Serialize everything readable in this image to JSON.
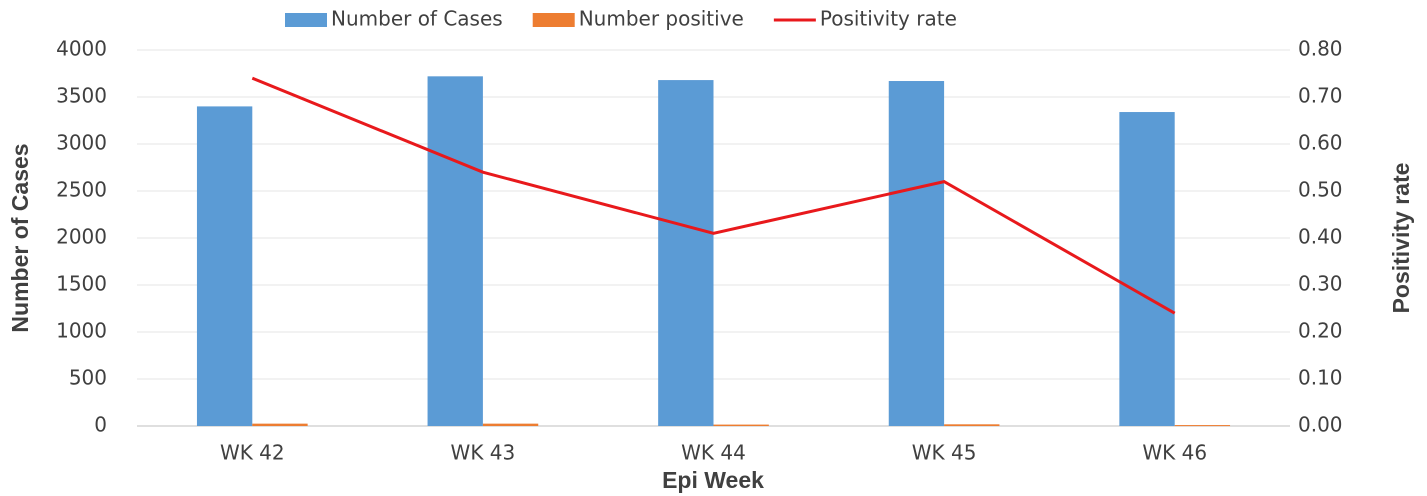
{
  "chart_data": {
    "type": "bar",
    "x_label": "Epi Week",
    "y_label": "Number of Cases",
    "y2_label": "Positivity rate",
    "categories": [
      "WK 42",
      "WK 43",
      "WK 44",
      "WK 45",
      "WK 46"
    ],
    "series": [
      {
        "name": "Number of Cases",
        "color": "#5b9bd5",
        "type": "bar",
        "values": [
          3400,
          3720,
          3680,
          3670,
          3340
        ]
      },
      {
        "name": "Number positive",
        "color": "#ed7d31",
        "type": "bar",
        "values": [
          25,
          25,
          15,
          18,
          10
        ]
      },
      {
        "name": "Positivity rate",
        "color": "#e8191c",
        "type": "line",
        "axis": "y2",
        "values": [
          0.74,
          0.54,
          0.41,
          0.52,
          0.24
        ]
      }
    ],
    "ylim": [
      0,
      4000
    ],
    "yticks": [
      0,
      500,
      1000,
      1500,
      2000,
      2500,
      3000,
      3500,
      4000
    ],
    "y2lim": [
      0,
      0.8
    ],
    "y2ticks": [
      {
        "value": 0,
        "label": "0.00"
      },
      {
        "value": 0.1,
        "label": "0.10"
      },
      {
        "value": 0.2,
        "label": "0.20"
      },
      {
        "value": 0.3,
        "label": "0.30"
      },
      {
        "value": 0.4,
        "label": "0.40"
      },
      {
        "value": 0.5,
        "label": "0.50"
      },
      {
        "value": 0.6,
        "label": "0.60"
      },
      {
        "value": 0.7,
        "label": "0.70"
      },
      {
        "value": 0.8,
        "label": "0.80"
      }
    ],
    "grid": true,
    "legend": "top"
  }
}
